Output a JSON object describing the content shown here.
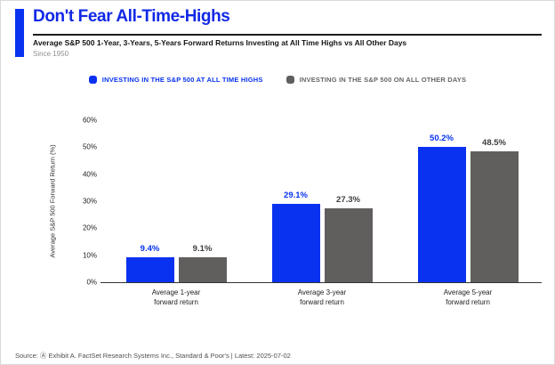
{
  "header": {
    "title": "Don't Fear All-Time-Highs",
    "subtitle": "Average S&P 500 1-Year, 3-Years, 5-Years Forward Returns Investing at All Time Highs vs All Other Days",
    "period_note": "Since 1950"
  },
  "colors": {
    "accent_blue": "#0832F0",
    "bar_gray": "#615E5E",
    "legend_gray_text": "#666666",
    "gray_value_label": "#3d3d3d",
    "title_blue": "#1129E6"
  },
  "chart_data": {
    "type": "bar",
    "categories": [
      "Average 1-year forward return",
      "Average 3-year forward return",
      "Average 5-year forward return"
    ],
    "series": [
      {
        "name": "INVESTING IN THE S&P 500 AT ALL TIME HIGHS",
        "color": "#0832F0",
        "label_color": "#0832F0",
        "value_color": "#0832F0",
        "values": [
          9.4,
          29.1,
          50.2
        ]
      },
      {
        "name": "INVESTING IN THE S&P 500 ON ALL OTHER DAYS",
        "color": "#615E5E",
        "label_color": "#666666",
        "value_color": "#3d3d3d",
        "values": [
          9.1,
          27.3,
          48.5
        ]
      }
    ],
    "title": "Don't Fear All-Time-Highs",
    "xlabel": "",
    "ylabel": "Average S&P 500 Forward Return (%)",
    "ylim": [
      0,
      60
    ],
    "yticks": [
      "0%",
      "10%",
      "20%",
      "30%",
      "40%",
      "50%",
      "60%"
    ],
    "grid": false,
    "legend_position": "top"
  },
  "footer": {
    "source": "Source: Ⓐ Exhibit A. FactSet Research Systems Inc., Standard & Poor's | Latest: 2025-07-02"
  }
}
